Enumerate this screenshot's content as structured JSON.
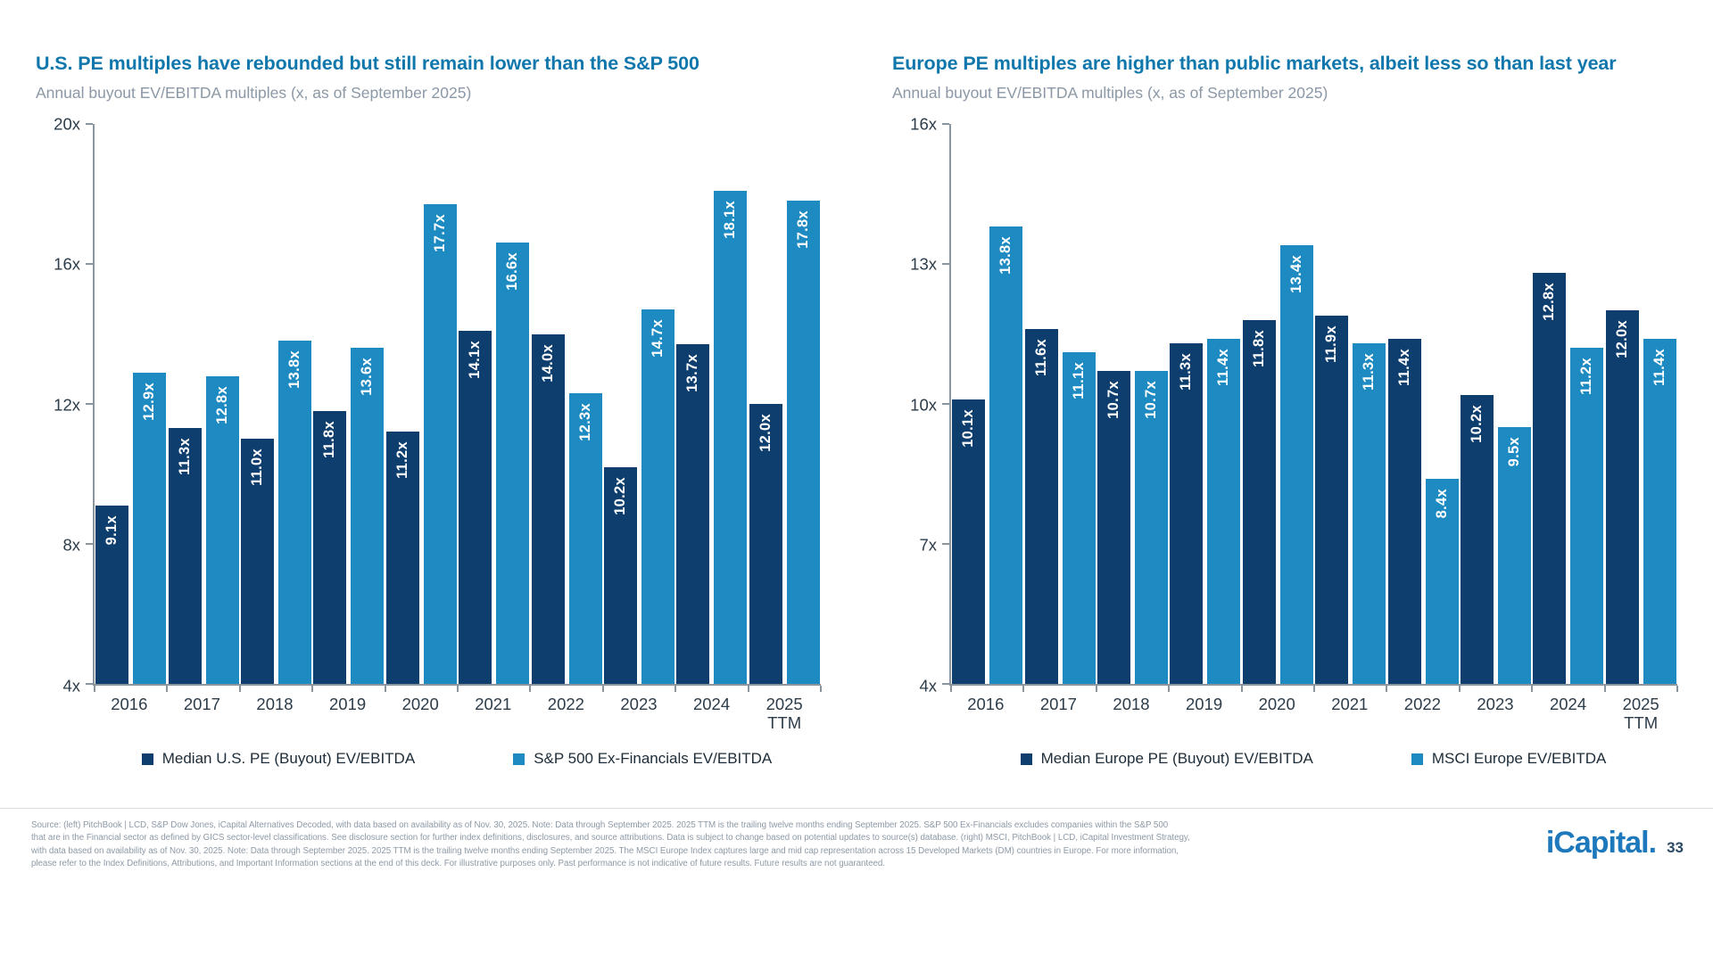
{
  "colors": {
    "series_dark": "#0d3e6d",
    "series_light": "#1e8ac2",
    "title_blue": "#0f77ac",
    "subtitle_gray": "#8b98a6",
    "axis_gray": "#8b959e",
    "footer_gray": "#8e9aa7",
    "logo_blue": "#1e79bc"
  },
  "chart_data": [
    {
      "type": "bar",
      "title": "U.S. PE multiples have rebounded but still remain lower than the S&P 500",
      "subtitle": "Annual buyout EV/EBITDA multiples (x, as of September 2025)",
      "categories": [
        "2016",
        "2017",
        "2018",
        "2019",
        "2020",
        "2021",
        "2022",
        "2023",
        "2024",
        "2025\nTTM"
      ],
      "series": [
        {
          "name": "Median U.S. PE (Buyout) EV/EBITDA",
          "color": "#0d3e6d",
          "values": [
            9.1,
            11.3,
            11.0,
            11.8,
            11.2,
            14.1,
            14.0,
            10.2,
            13.7,
            12.0
          ],
          "labels": [
            "9.1x",
            "11.3x",
            "11.0x",
            "11.8x",
            "11.2x",
            "14.1x",
            "14.0x",
            "10.2x",
            "13.7x",
            "12.0x"
          ]
        },
        {
          "name": "S&P 500 Ex-Financials EV/EBITDA",
          "color": "#1e8ac2",
          "values": [
            12.9,
            12.8,
            13.8,
            13.6,
            17.7,
            16.6,
            12.3,
            14.7,
            18.1,
            17.8
          ],
          "labels": [
            "12.9x",
            "12.8x",
            "13.8x",
            "13.6x",
            "17.7x",
            "16.6x",
            "12.3x",
            "14.7x",
            "18.1x",
            "17.8x"
          ]
        }
      ],
      "ylim": [
        4,
        20
      ],
      "ytick_values": [
        20,
        16,
        12,
        8,
        4
      ],
      "ytick_labels": [
        "20x",
        "16x",
        "12x",
        "8x",
        "4x"
      ],
      "grid": false,
      "legend_position": "bottom"
    },
    {
      "type": "bar",
      "title": "Europe PE multiples are higher than public markets, albeit less so than last year",
      "subtitle": "Annual buyout EV/EBITDA multiples (x, as of September 2025)",
      "categories": [
        "2016",
        "2017",
        "2018",
        "2019",
        "2020",
        "2021",
        "2022",
        "2023",
        "2024",
        "2025\nTTM"
      ],
      "series": [
        {
          "name": "Median Europe PE (Buyout) EV/EBITDA",
          "color": "#0d3e6d",
          "values": [
            10.1,
            11.6,
            10.7,
            11.3,
            11.8,
            11.9,
            11.4,
            10.2,
            12.8,
            12.0
          ],
          "labels": [
            "10.1x",
            "11.6x",
            "10.7x",
            "11.3x",
            "11.8x",
            "11.9x",
            "11.4x",
            "10.2x",
            "12.8x",
            "12.0x"
          ]
        },
        {
          "name": "MSCI Europe EV/EBITDA",
          "color": "#1e8ac2",
          "values": [
            13.8,
            11.1,
            10.7,
            11.4,
            13.4,
            11.3,
            8.4,
            9.5,
            11.2,
            11.4
          ],
          "labels": [
            "13.8x",
            "11.1x",
            "10.7x",
            "11.4x",
            "13.4x",
            "11.3x",
            "8.4x",
            "9.5x",
            "11.2x",
            "11.4x"
          ]
        }
      ],
      "ylim": [
        4,
        16
      ],
      "ytick_values": [
        16,
        13,
        10,
        7,
        4
      ],
      "ytick_labels": [
        "16x",
        "13x",
        "10x",
        "7x",
        "4x"
      ],
      "grid": false,
      "legend_position": "bottom"
    }
  ],
  "footer": {
    "lines": [
      "Source: (left) PitchBook | LCD, S&P Dow Jones, iCapital Alternatives Decoded, with data based on availability as of Nov. 30, 2025. Note: Data through September 2025. 2025 TTM is the trailing twelve months ending September 2025. S&P 500 Ex-Financials excludes companies within the S&P 500",
      "that are in the Financial sector as defined by GICS sector-level classifications. See disclosure section for further index definitions, disclosures, and source attributions. Data is subject to change based on potential updates to source(s) database. (right) MSCI, PitchBook | LCD, iCapital Investment Strategy,",
      "with data based on availability as of Nov. 30, 2025. Note: Data through September 2025. 2025 TTM is the trailing twelve months ending September 2025. The MSCI Europe Index captures large and mid cap representation across 15 Developed Markets (DM) countries in Europe. For more information,",
      "please refer to the Index Definitions, Attributions, and Important Information sections at the end of this deck. For illustrative purposes only. Past performance is not indicative of future results. Future results are not guaranteed."
    ],
    "logo": "iCapital.",
    "page_number": "33"
  }
}
